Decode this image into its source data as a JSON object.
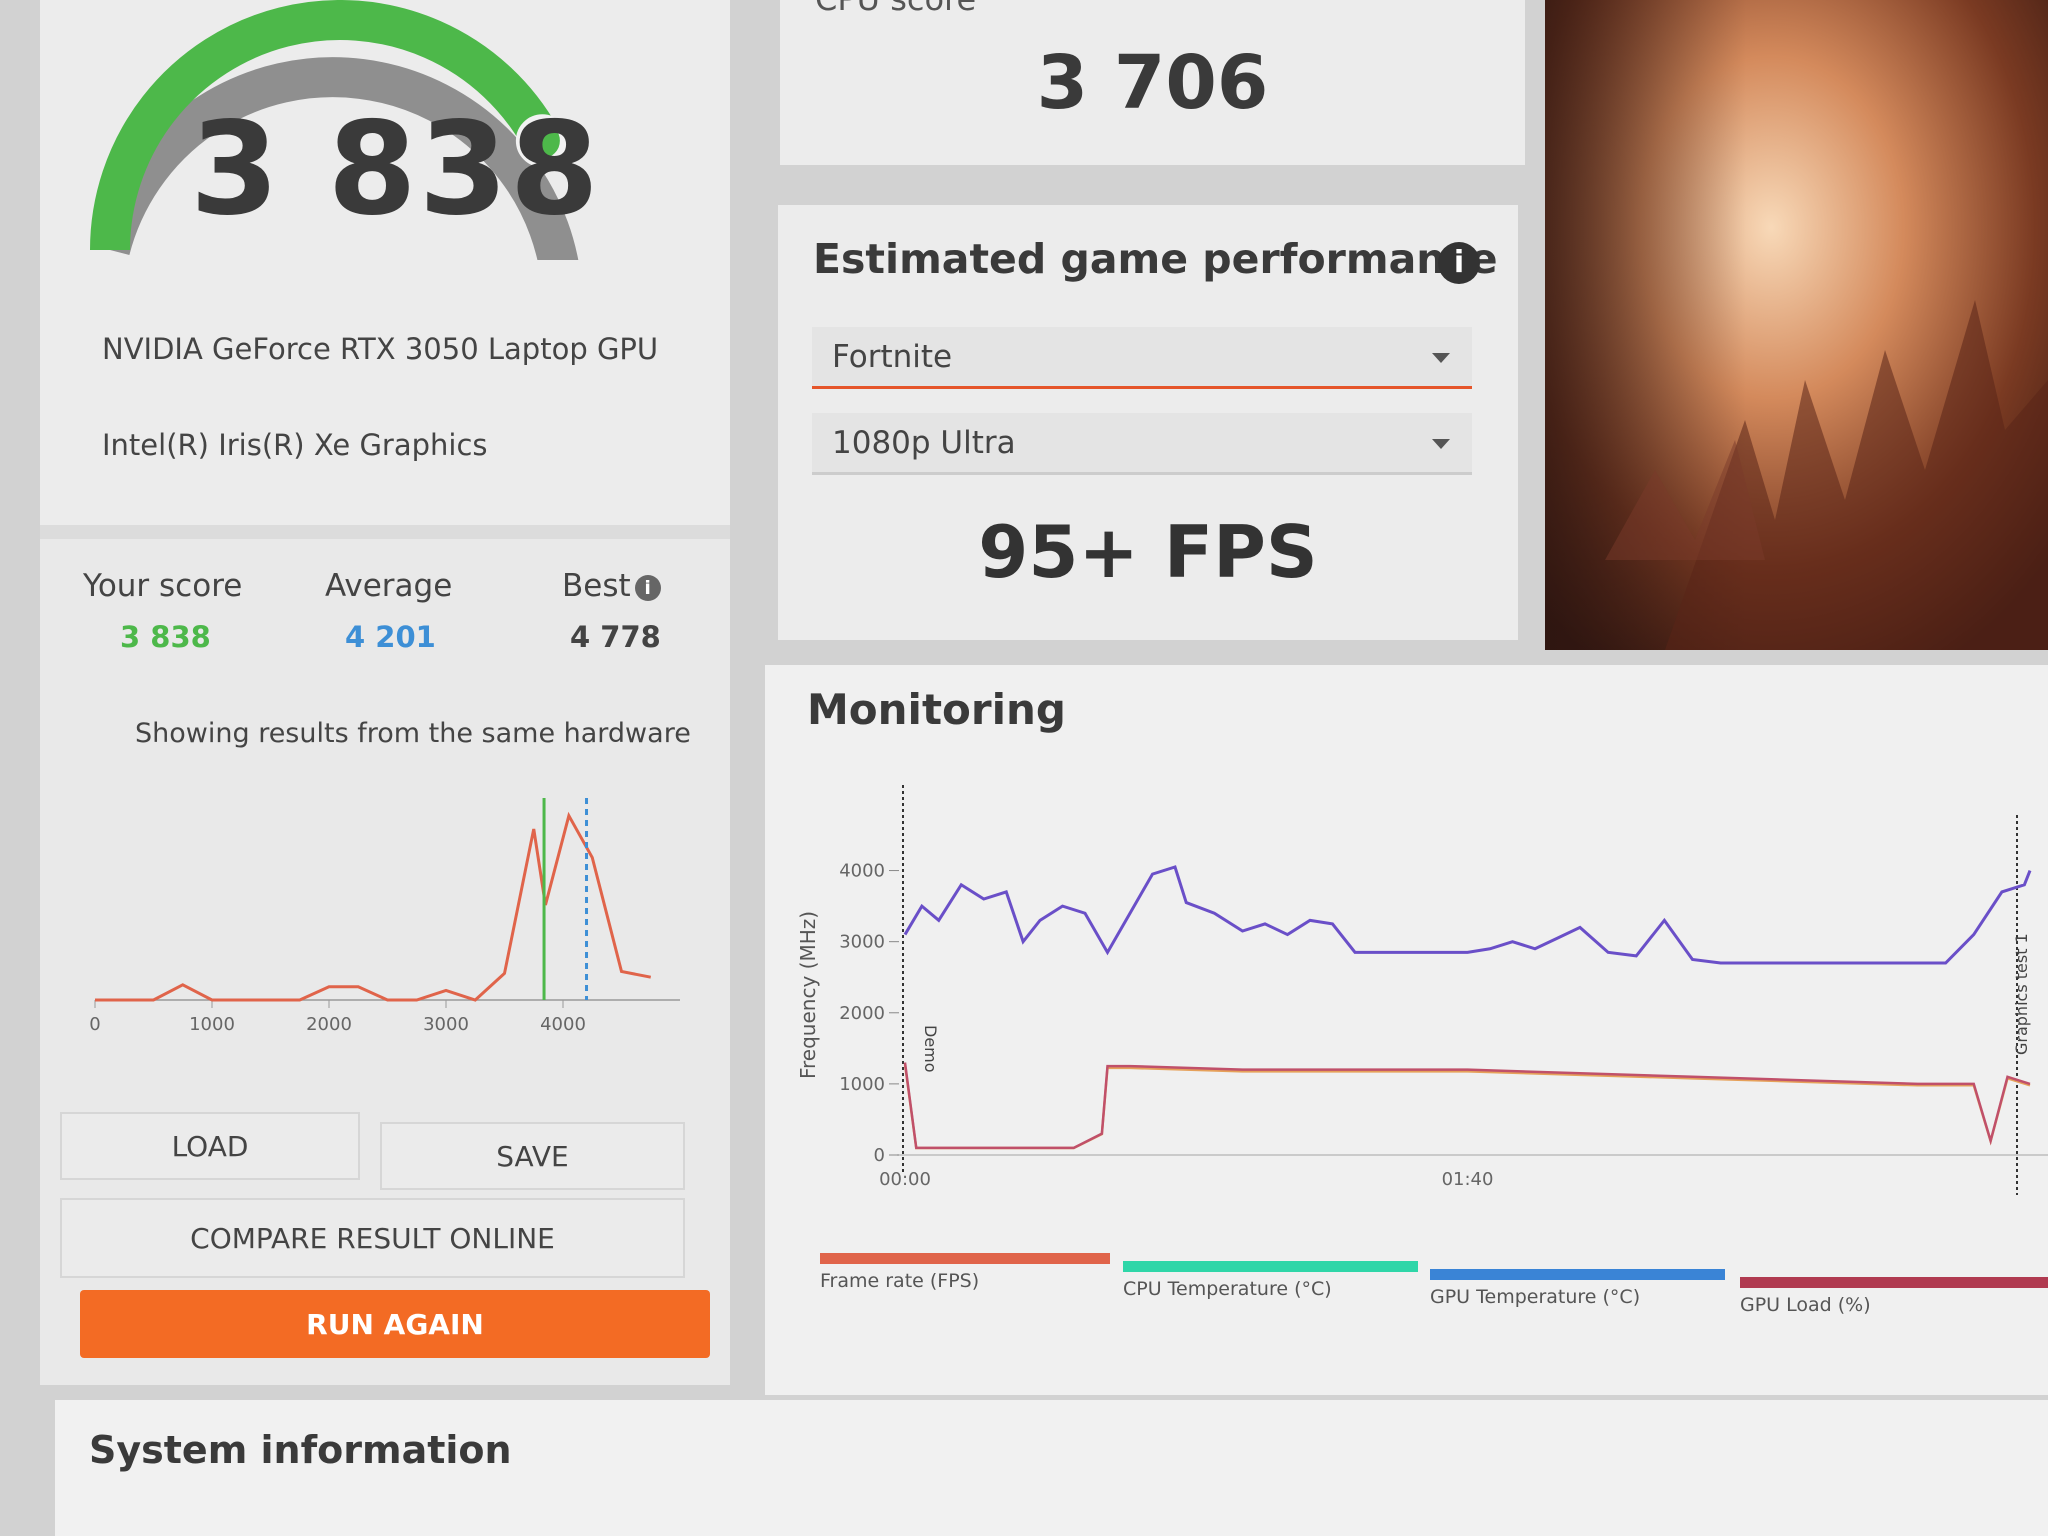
{
  "gpu_score": {
    "value": "3 838",
    "gauge_fraction": 0.78,
    "primary_gpu": "NVIDIA GeForce RTX 3050 Laptop GPU",
    "secondary_gpu": "Intel(R) Iris(R) Xe Graphics"
  },
  "comparison": {
    "your_score_label": "Your score",
    "your_score_value": "3 838",
    "average_label": "Average",
    "average_value": "4 201",
    "best_label": "Best",
    "best_value": "4 778",
    "info_icon": "i",
    "showing_text": "Showing results from the same hardware"
  },
  "buttons": {
    "load": "LOAD",
    "save": "SAVE",
    "compare": "COMPARE RESULT ONLINE",
    "run_again": "RUN AGAIN"
  },
  "cpu": {
    "label": "CPU score",
    "value": "3 706"
  },
  "estimated_performance": {
    "title": "Estimated game performance",
    "info_icon": "i",
    "game": "Fortnite",
    "preset": "1080p Ultra",
    "fps": "95+ FPS"
  },
  "monitoring": {
    "title": "Monitoring",
    "legend": [
      {
        "label": "Frame rate (FPS)",
        "color": "#e0644a"
      },
      {
        "label": "CPU Temperature (°C)",
        "color": "#2fd6a8"
      },
      {
        "label": "GPU Temperature (°C)",
        "color": "#3a84d6"
      },
      {
        "label": "GPU Load (%)",
        "color": "#b03a50"
      }
    ],
    "markers": [
      "Demo",
      "Graphics test 1"
    ]
  },
  "system_info": {
    "title": "System information"
  },
  "colors": {
    "accent_orange": "#f36b24",
    "score_green": "#4db84a",
    "average_blue": "#3d8fd6",
    "frequency_purple": "#6a4fc8",
    "temperature_orange": "#e6a15a",
    "distribution_line": "#e0644a"
  },
  "chart_data": [
    {
      "type": "line",
      "name": "score-distribution",
      "x_ticks": [
        "0",
        "1000",
        "2000",
        "3000",
        "4000"
      ],
      "xlim": [
        0,
        5000
      ],
      "series": [
        {
          "x": [
            0,
            500,
            750,
            1000,
            1250,
            1750,
            2000,
            2250,
            2500,
            2750,
            3000,
            3250,
            3500,
            3750,
            3850,
            4050,
            4250,
            4500,
            4750
          ],
          "values": [
            0,
            0,
            0.08,
            0,
            0,
            0,
            0.07,
            0.07,
            0,
            0,
            0.05,
            0,
            0.14,
            0.9,
            0.5,
            0.97,
            0.75,
            0.15,
            0.12
          ]
        }
      ],
      "markers": {
        "your_score": 3838,
        "average": 4201
      }
    },
    {
      "type": "line",
      "name": "monitoring",
      "ylabel": "Frequency (MHz)",
      "y_ticks": [
        "0",
        "1000",
        "2000",
        "3000",
        "4000"
      ],
      "ylim": [
        0,
        4500
      ],
      "x_ticks": [
        "00:00",
        "01:40"
      ],
      "xlim": [
        0,
        200
      ],
      "series": [
        {
          "x": [
            0,
            3,
            6,
            10,
            14,
            18,
            21,
            24,
            28,
            32,
            36,
            40,
            44,
            48,
            50,
            55,
            60,
            64,
            68,
            72,
            76,
            80,
            84,
            88,
            92,
            96,
            100,
            104,
            108,
            112,
            116,
            120,
            125,
            130,
            135,
            140,
            145,
            150,
            155,
            160,
            165,
            170,
            175,
            180,
            185,
            190,
            195,
            199,
            200
          ],
          "values": [
            3100,
            3500,
            3300,
            3800,
            3600,
            3700,
            3000,
            3300,
            3500,
            3400,
            2850,
            3400,
            3950,
            4050,
            3550,
            3400,
            3150,
            3250,
            3100,
            3300,
            3250,
            2850,
            2850,
            2850,
            2850,
            2850,
            2850,
            2900,
            3000,
            2900,
            3050,
            3200,
            2850,
            2800,
            3300,
            2750,
            2700,
            2700,
            2700,
            2700,
            2700,
            2700,
            2700,
            2700,
            2700,
            3100,
            3700,
            3800,
            4000
          ]
        },
        {
          "x": [
            0,
            2,
            4,
            20,
            30,
            35,
            36,
            40,
            60,
            80,
            100,
            120,
            140,
            160,
            180,
            190,
            193,
            196,
            200
          ],
          "values": [
            1300,
            100,
            100,
            100,
            100,
            300,
            1250,
            1250,
            1200,
            1200,
            1200,
            1150,
            1100,
            1050,
            1000,
            1000,
            200,
            1100,
            1000
          ]
        }
      ]
    }
  ]
}
